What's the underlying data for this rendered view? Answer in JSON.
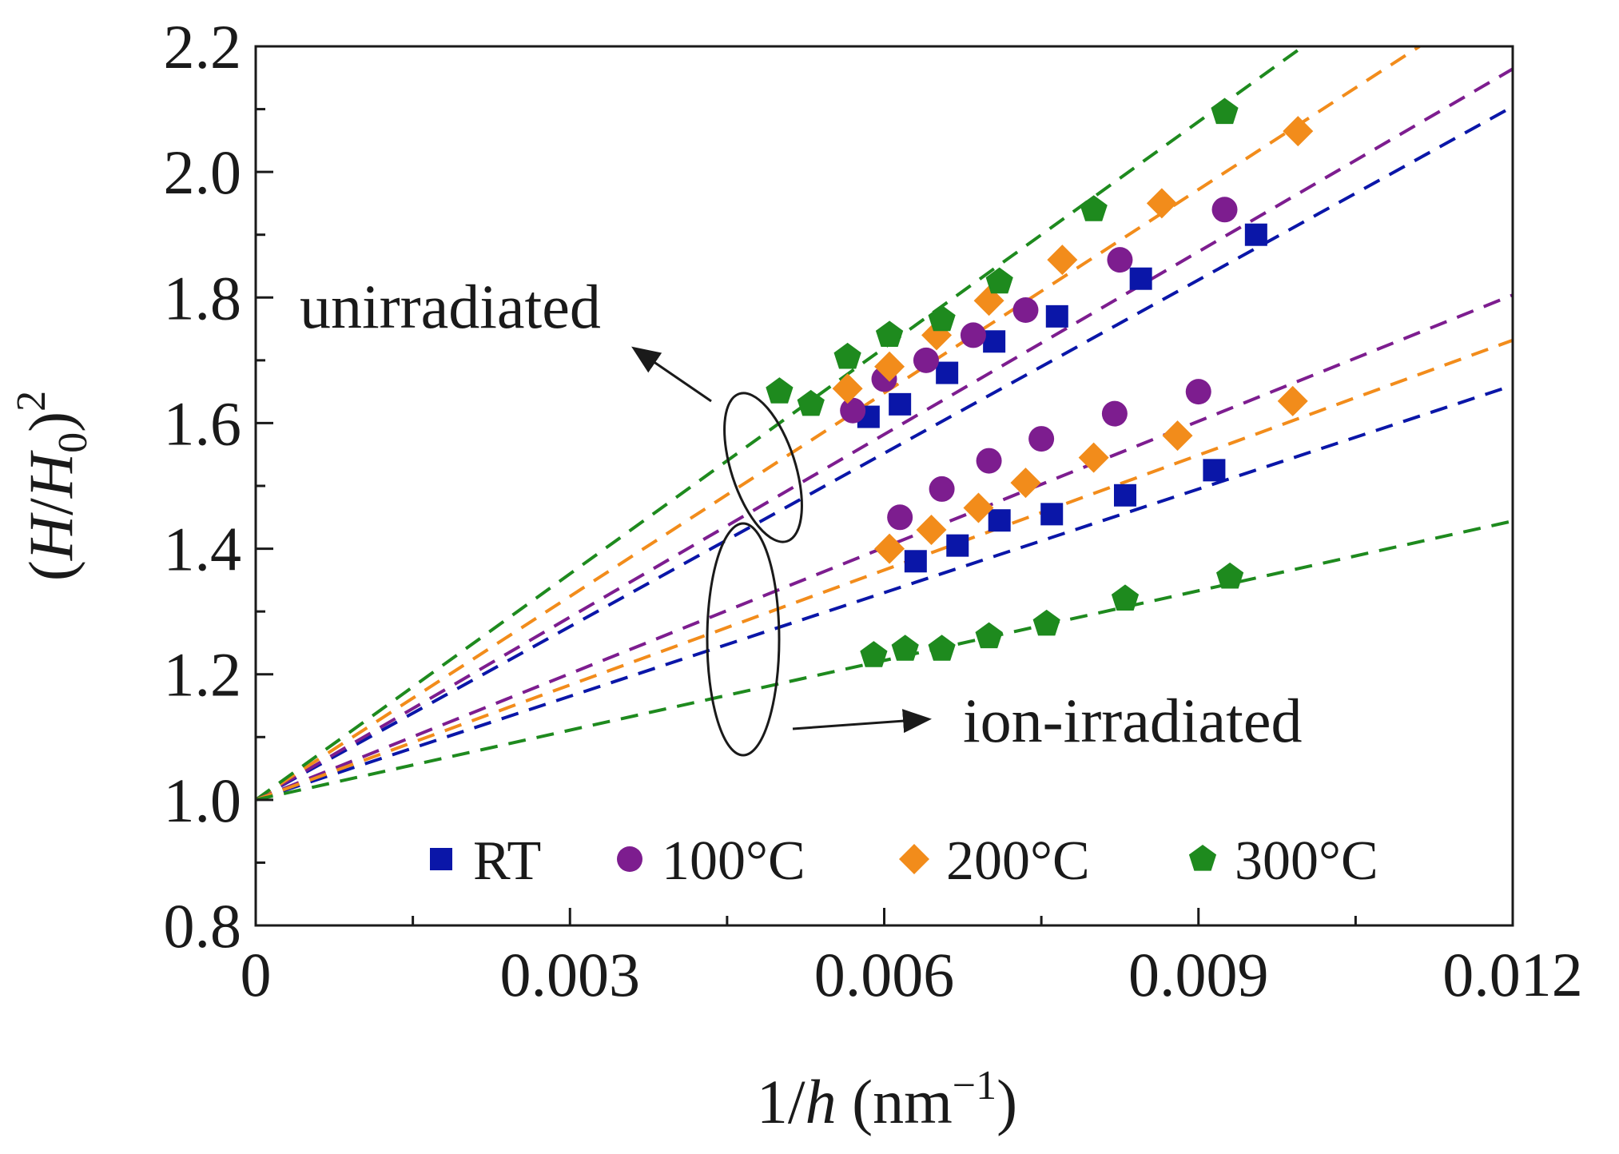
{
  "chart_data": {
    "type": "scatter",
    "xlabel": "1/h (nm⁻¹)",
    "xlabel_parts": {
      "main": "1/",
      "var": "h",
      "unit_open": " (nm",
      "unit_exp": "−1",
      "unit_close": ")"
    },
    "ylabel": "(H/H0)^2",
    "ylabel_parts": {
      "open": "(",
      "var1": "H",
      "slash": "/",
      "var2": "H",
      "sub": "0",
      "close": ")",
      "exp": "2"
    },
    "xlim": [
      0,
      0.012
    ],
    "ylim": [
      0.8,
      2.2
    ],
    "xticks": [
      0,
      0.003,
      0.006,
      0.009,
      0.012
    ],
    "xtick_labels": [
      "0",
      "0.003",
      "0.006",
      "0.009",
      "0.012"
    ],
    "xminor": [
      0.0015,
      0.0045,
      0.0075,
      0.0105
    ],
    "yticks": [
      0.8,
      1.0,
      1.2,
      1.4,
      1.6,
      1.8,
      2.0,
      2.2
    ],
    "ytick_labels": [
      "0.8",
      "1.0",
      "1.2",
      "1.4",
      "1.6",
      "1.8",
      "2.0",
      "2.2"
    ],
    "yminor": [
      0.9,
      1.1,
      1.3,
      1.5,
      1.7,
      1.9,
      2.1
    ],
    "annotations": {
      "unirradiated": "unirradiated",
      "ion_irradiated": "ion-irradiated"
    },
    "legend": [
      {
        "name": "RT",
        "marker": "square",
        "color": "#0a16a8"
      },
      {
        "name": "100°C",
        "marker": "circle",
        "color": "#7d1d8f"
      },
      {
        "name": "200°C",
        "marker": "diamond",
        "color": "#f28c1b"
      },
      {
        "name": "300°C",
        "marker": "pentagon",
        "color": "#1e8a1e"
      }
    ],
    "series": [
      {
        "name": "RT",
        "group": "unirradiated",
        "marker": "square",
        "color": "#0a16a8",
        "fit_slope": 92,
        "fit_intercept": 1.0,
        "points": [
          [
            0.00585,
            1.61
          ],
          [
            0.00615,
            1.63
          ],
          [
            0.0066,
            1.68
          ],
          [
            0.00705,
            1.73
          ],
          [
            0.00765,
            1.77
          ],
          [
            0.00845,
            1.83
          ],
          [
            0.00955,
            1.9
          ]
        ]
      },
      {
        "name": "100°C",
        "group": "unirradiated",
        "marker": "circle",
        "color": "#7d1d8f",
        "fit_slope": 97,
        "fit_intercept": 1.0,
        "points": [
          [
            0.0057,
            1.62
          ],
          [
            0.006,
            1.67
          ],
          [
            0.0064,
            1.7
          ],
          [
            0.00685,
            1.74
          ],
          [
            0.00735,
            1.78
          ],
          [
            0.00825,
            1.86
          ],
          [
            0.00925,
            1.94
          ]
        ]
      },
      {
        "name": "200°C",
        "group": "unirradiated",
        "marker": "diamond",
        "color": "#f28c1b",
        "fit_slope": 108,
        "fit_intercept": 1.0,
        "points": [
          [
            0.00565,
            1.655
          ],
          [
            0.00605,
            1.69
          ],
          [
            0.0065,
            1.74
          ],
          [
            0.007,
            1.795
          ],
          [
            0.0077,
            1.86
          ],
          [
            0.00865,
            1.95
          ],
          [
            0.00995,
            2.065
          ]
        ]
      },
      {
        "name": "300°C",
        "group": "unirradiated",
        "marker": "pentagon",
        "color": "#1e8a1e",
        "fit_slope": 120,
        "fit_intercept": 1.0,
        "points": [
          [
            0.005,
            1.65
          ],
          [
            0.0053,
            1.63
          ],
          [
            0.00565,
            1.705
          ],
          [
            0.00605,
            1.74
          ],
          [
            0.00655,
            1.765
          ],
          [
            0.0071,
            1.825
          ],
          [
            0.008,
            1.94
          ],
          [
            0.00925,
            2.095
          ]
        ]
      },
      {
        "name": "RT",
        "group": "ion-irradiated",
        "marker": "square",
        "color": "#0a16a8",
        "fit_slope": 55,
        "fit_intercept": 1.0,
        "points": [
          [
            0.0063,
            1.38
          ],
          [
            0.0067,
            1.405
          ],
          [
            0.0071,
            1.445
          ],
          [
            0.0076,
            1.455
          ],
          [
            0.0083,
            1.485
          ],
          [
            0.00915,
            1.525
          ]
        ]
      },
      {
        "name": "100°C",
        "group": "ion-irradiated",
        "marker": "circle",
        "color": "#7d1d8f",
        "fit_slope": 67,
        "fit_intercept": 1.0,
        "points": [
          [
            0.00615,
            1.45
          ],
          [
            0.00655,
            1.495
          ],
          [
            0.007,
            1.54
          ],
          [
            0.0075,
            1.575
          ],
          [
            0.0082,
            1.615
          ],
          [
            0.009,
            1.65
          ]
        ]
      },
      {
        "name": "200°C",
        "group": "ion-irradiated",
        "marker": "diamond",
        "color": "#f28c1b",
        "fit_slope": 61,
        "fit_intercept": 1.0,
        "points": [
          [
            0.00605,
            1.4
          ],
          [
            0.00645,
            1.43
          ],
          [
            0.0069,
            1.465
          ],
          [
            0.00735,
            1.505
          ],
          [
            0.008,
            1.545
          ],
          [
            0.0088,
            1.58
          ],
          [
            0.0099,
            1.635
          ]
        ]
      },
      {
        "name": "300°C",
        "group": "ion-irradiated",
        "marker": "pentagon",
        "color": "#1e8a1e",
        "fit_slope": 37,
        "fit_intercept": 1.0,
        "points": [
          [
            0.0059,
            1.23
          ],
          [
            0.0062,
            1.24
          ],
          [
            0.00655,
            1.24
          ],
          [
            0.007,
            1.26
          ],
          [
            0.00755,
            1.28
          ],
          [
            0.0083,
            1.32
          ],
          [
            0.0093,
            1.355
          ]
        ]
      }
    ]
  }
}
